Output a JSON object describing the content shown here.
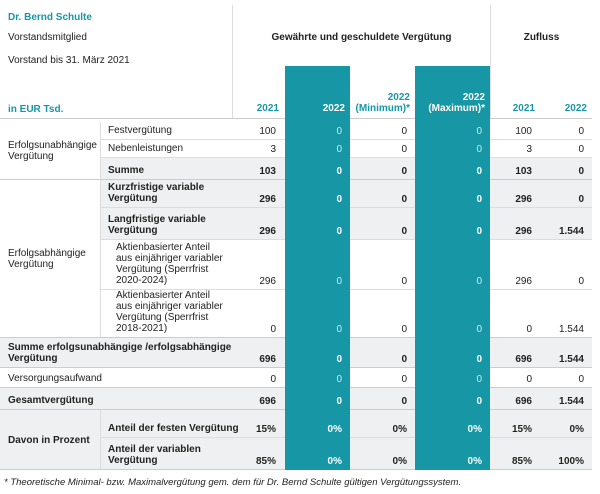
{
  "header": {
    "name": "Dr. Bernd Schulte",
    "role": "Vorstandsmitglied",
    "tenure": "Vorstand bis 31. März 2021",
    "unit": "in EUR Tsd.",
    "groups": [
      "Gewährte und geschuldete Vergütung",
      "Zufluss"
    ],
    "columns": [
      "2021",
      "2022",
      "2022\n(Minimum)*",
      "2022\n(Maximum)*",
      "2021",
      "2022"
    ]
  },
  "table": {
    "sections": [
      {
        "label": "Erfolgsunabhängige\nVergütung",
        "rows": [
          {
            "label": "Festvergütung",
            "values": [
              "100",
              "0",
              "0",
              "0",
              "100",
              "0"
            ]
          },
          {
            "label": "Nebenleistungen",
            "values": [
              "3",
              "0",
              "0",
              "0",
              "3",
              "0"
            ]
          },
          {
            "label": "Summe",
            "emphasis": true,
            "values": [
              "103",
              "0",
              "0",
              "0",
              "103",
              "0"
            ]
          }
        ]
      },
      {
        "label": "Erfolgsabhängige\nVergütung",
        "rows": [
          {
            "label": "Kurzfristige variable\nVergütung",
            "emphasis": true,
            "values": [
              "296",
              "0",
              "0",
              "0",
              "296",
              "0"
            ]
          },
          {
            "label": "Langfristige variable\nVergütung",
            "emphasis": true,
            "values": [
              "296",
              "0",
              "0",
              "0",
              "296",
              "1.544"
            ]
          },
          {
            "label": "Aktienbasierter Anteil\naus einjähriger variabler\nVergütung (Sperrfrist\n2020-2024)",
            "indent": true,
            "values": [
              "296",
              "0",
              "0",
              "0",
              "296",
              "0"
            ]
          },
          {
            "label": "Aktienbasierter Anteil\naus einjähriger variabler\nVergütung (Sperrfrist\n2018-2021)",
            "indent": true,
            "values": [
              "0",
              "0",
              "0",
              "0",
              "0",
              "1.544"
            ]
          }
        ]
      },
      {
        "label": "Summe erfolgsunabhängige /erfolgsabhängige\nVergütung",
        "emphasis": true,
        "values": [
          "696",
          "0",
          "0",
          "0",
          "696",
          "1.544"
        ]
      },
      {
        "label": "Versorgungsaufwand",
        "values": [
          "0",
          "0",
          "0",
          "0",
          "0",
          "0"
        ]
      },
      {
        "label": "Gesamtvergütung",
        "emphasis": true,
        "values": [
          "696",
          "0",
          "0",
          "0",
          "696",
          "1.544"
        ]
      },
      {
        "label": "Davon in Prozent",
        "emphasis": true,
        "rows": [
          {
            "label": "Anteil der festen Vergütung",
            "emphasis": true,
            "values": [
              "15%",
              "0%",
              "0%",
              "0%",
              "15%",
              "0%"
            ]
          },
          {
            "label": "Anteil der variablen\nVergütung",
            "emphasis": true,
            "values": [
              "85%",
              "0%",
              "0%",
              "0%",
              "85%",
              "100%"
            ]
          }
        ]
      }
    ]
  },
  "footnote": "* Theoretische Minimal- bzw. Maximalvergütung gem. dem für Dr. Bernd Schulte gültigen Vergütungssystem."
}
